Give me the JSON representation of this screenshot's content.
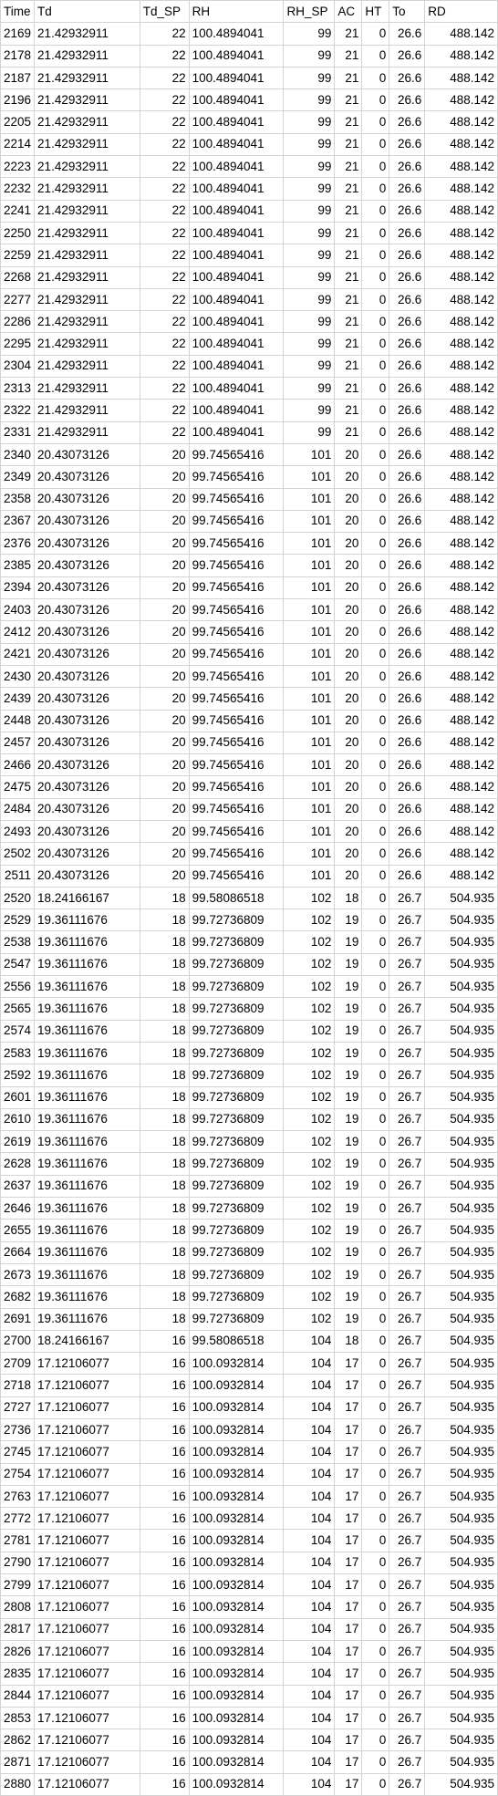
{
  "sheet": {
    "headers": [
      "Time",
      "Td",
      "Td_SP",
      "RH",
      "RH_SP",
      "AC",
      "HT",
      "To",
      "RD"
    ],
    "rows": [
      [
        "2169",
        "21.42932911",
        "22",
        "100.4894041",
        "99",
        "21",
        "0",
        "26.6",
        "488.142"
      ],
      [
        "2178",
        "21.42932911",
        "22",
        "100.4894041",
        "99",
        "21",
        "0",
        "26.6",
        "488.142"
      ],
      [
        "2187",
        "21.42932911",
        "22",
        "100.4894041",
        "99",
        "21",
        "0",
        "26.6",
        "488.142"
      ],
      [
        "2196",
        "21.42932911",
        "22",
        "100.4894041",
        "99",
        "21",
        "0",
        "26.6",
        "488.142"
      ],
      [
        "2205",
        "21.42932911",
        "22",
        "100.4894041",
        "99",
        "21",
        "0",
        "26.6",
        "488.142"
      ],
      [
        "2214",
        "21.42932911",
        "22",
        "100.4894041",
        "99",
        "21",
        "0",
        "26.6",
        "488.142"
      ],
      [
        "2223",
        "21.42932911",
        "22",
        "100.4894041",
        "99",
        "21",
        "0",
        "26.6",
        "488.142"
      ],
      [
        "2232",
        "21.42932911",
        "22",
        "100.4894041",
        "99",
        "21",
        "0",
        "26.6",
        "488.142"
      ],
      [
        "2241",
        "21.42932911",
        "22",
        "100.4894041",
        "99",
        "21",
        "0",
        "26.6",
        "488.142"
      ],
      [
        "2250",
        "21.42932911",
        "22",
        "100.4894041",
        "99",
        "21",
        "0",
        "26.6",
        "488.142"
      ],
      [
        "2259",
        "21.42932911",
        "22",
        "100.4894041",
        "99",
        "21",
        "0",
        "26.6",
        "488.142"
      ],
      [
        "2268",
        "21.42932911",
        "22",
        "100.4894041",
        "99",
        "21",
        "0",
        "26.6",
        "488.142"
      ],
      [
        "2277",
        "21.42932911",
        "22",
        "100.4894041",
        "99",
        "21",
        "0",
        "26.6",
        "488.142"
      ],
      [
        "2286",
        "21.42932911",
        "22",
        "100.4894041",
        "99",
        "21",
        "0",
        "26.6",
        "488.142"
      ],
      [
        "2295",
        "21.42932911",
        "22",
        "100.4894041",
        "99",
        "21",
        "0",
        "26.6",
        "488.142"
      ],
      [
        "2304",
        "21.42932911",
        "22",
        "100.4894041",
        "99",
        "21",
        "0",
        "26.6",
        "488.142"
      ],
      [
        "2313",
        "21.42932911",
        "22",
        "100.4894041",
        "99",
        "21",
        "0",
        "26.6",
        "488.142"
      ],
      [
        "2322",
        "21.42932911",
        "22",
        "100.4894041",
        "99",
        "21",
        "0",
        "26.6",
        "488.142"
      ],
      [
        "2331",
        "21.42932911",
        "22",
        "100.4894041",
        "99",
        "21",
        "0",
        "26.6",
        "488.142"
      ],
      [
        "2340",
        "20.43073126",
        "20",
        "99.74565416",
        "101",
        "20",
        "0",
        "26.6",
        "488.142"
      ],
      [
        "2349",
        "20.43073126",
        "20",
        "99.74565416",
        "101",
        "20",
        "0",
        "26.6",
        "488.142"
      ],
      [
        "2358",
        "20.43073126",
        "20",
        "99.74565416",
        "101",
        "20",
        "0",
        "26.6",
        "488.142"
      ],
      [
        "2367",
        "20.43073126",
        "20",
        "99.74565416",
        "101",
        "20",
        "0",
        "26.6",
        "488.142"
      ],
      [
        "2376",
        "20.43073126",
        "20",
        "99.74565416",
        "101",
        "20",
        "0",
        "26.6",
        "488.142"
      ],
      [
        "2385",
        "20.43073126",
        "20",
        "99.74565416",
        "101",
        "20",
        "0",
        "26.6",
        "488.142"
      ],
      [
        "2394",
        "20.43073126",
        "20",
        "99.74565416",
        "101",
        "20",
        "0",
        "26.6",
        "488.142"
      ],
      [
        "2403",
        "20.43073126",
        "20",
        "99.74565416",
        "101",
        "20",
        "0",
        "26.6",
        "488.142"
      ],
      [
        "2412",
        "20.43073126",
        "20",
        "99.74565416",
        "101",
        "20",
        "0",
        "26.6",
        "488.142"
      ],
      [
        "2421",
        "20.43073126",
        "20",
        "99.74565416",
        "101",
        "20",
        "0",
        "26.6",
        "488.142"
      ],
      [
        "2430",
        "20.43073126",
        "20",
        "99.74565416",
        "101",
        "20",
        "0",
        "26.6",
        "488.142"
      ],
      [
        "2439",
        "20.43073126",
        "20",
        "99.74565416",
        "101",
        "20",
        "0",
        "26.6",
        "488.142"
      ],
      [
        "2448",
        "20.43073126",
        "20",
        "99.74565416",
        "101",
        "20",
        "0",
        "26.6",
        "488.142"
      ],
      [
        "2457",
        "20.43073126",
        "20",
        "99.74565416",
        "101",
        "20",
        "0",
        "26.6",
        "488.142"
      ],
      [
        "2466",
        "20.43073126",
        "20",
        "99.74565416",
        "101",
        "20",
        "0",
        "26.6",
        "488.142"
      ],
      [
        "2475",
        "20.43073126",
        "20",
        "99.74565416",
        "101",
        "20",
        "0",
        "26.6",
        "488.142"
      ],
      [
        "2484",
        "20.43073126",
        "20",
        "99.74565416",
        "101",
        "20",
        "0",
        "26.6",
        "488.142"
      ],
      [
        "2493",
        "20.43073126",
        "20",
        "99.74565416",
        "101",
        "20",
        "0",
        "26.6",
        "488.142"
      ],
      [
        "2502",
        "20.43073126",
        "20",
        "99.74565416",
        "101",
        "20",
        "0",
        "26.6",
        "488.142"
      ],
      [
        "2511",
        "20.43073126",
        "20",
        "99.74565416",
        "101",
        "20",
        "0",
        "26.6",
        "488.142"
      ],
      [
        "2520",
        "18.24166167",
        "18",
        "99.58086518",
        "102",
        "18",
        "0",
        "26.7",
        "504.935"
      ],
      [
        "2529",
        "19.36111676",
        "18",
        "99.72736809",
        "102",
        "19",
        "0",
        "26.7",
        "504.935"
      ],
      [
        "2538",
        "19.36111676",
        "18",
        "99.72736809",
        "102",
        "19",
        "0",
        "26.7",
        "504.935"
      ],
      [
        "2547",
        "19.36111676",
        "18",
        "99.72736809",
        "102",
        "19",
        "0",
        "26.7",
        "504.935"
      ],
      [
        "2556",
        "19.36111676",
        "18",
        "99.72736809",
        "102",
        "19",
        "0",
        "26.7",
        "504.935"
      ],
      [
        "2565",
        "19.36111676",
        "18",
        "99.72736809",
        "102",
        "19",
        "0",
        "26.7",
        "504.935"
      ],
      [
        "2574",
        "19.36111676",
        "18",
        "99.72736809",
        "102",
        "19",
        "0",
        "26.7",
        "504.935"
      ],
      [
        "2583",
        "19.36111676",
        "18",
        "99.72736809",
        "102",
        "19",
        "0",
        "26.7",
        "504.935"
      ],
      [
        "2592",
        "19.36111676",
        "18",
        "99.72736809",
        "102",
        "19",
        "0",
        "26.7",
        "504.935"
      ],
      [
        "2601",
        "19.36111676",
        "18",
        "99.72736809",
        "102",
        "19",
        "0",
        "26.7",
        "504.935"
      ],
      [
        "2610",
        "19.36111676",
        "18",
        "99.72736809",
        "102",
        "19",
        "0",
        "26.7",
        "504.935"
      ],
      [
        "2619",
        "19.36111676",
        "18",
        "99.72736809",
        "102",
        "19",
        "0",
        "26.7",
        "504.935"
      ],
      [
        "2628",
        "19.36111676",
        "18",
        "99.72736809",
        "102",
        "19",
        "0",
        "26.7",
        "504.935"
      ],
      [
        "2637",
        "19.36111676",
        "18",
        "99.72736809",
        "102",
        "19",
        "0",
        "26.7",
        "504.935"
      ],
      [
        "2646",
        "19.36111676",
        "18",
        "99.72736809",
        "102",
        "19",
        "0",
        "26.7",
        "504.935"
      ],
      [
        "2655",
        "19.36111676",
        "18",
        "99.72736809",
        "102",
        "19",
        "0",
        "26.7",
        "504.935"
      ],
      [
        "2664",
        "19.36111676",
        "18",
        "99.72736809",
        "102",
        "19",
        "0",
        "26.7",
        "504.935"
      ],
      [
        "2673",
        "19.36111676",
        "18",
        "99.72736809",
        "102",
        "19",
        "0",
        "26.7",
        "504.935"
      ],
      [
        "2682",
        "19.36111676",
        "18",
        "99.72736809",
        "102",
        "19",
        "0",
        "26.7",
        "504.935"
      ],
      [
        "2691",
        "19.36111676",
        "18",
        "99.72736809",
        "102",
        "19",
        "0",
        "26.7",
        "504.935"
      ],
      [
        "2700",
        "18.24166167",
        "16",
        "99.58086518",
        "104",
        "18",
        "0",
        "26.7",
        "504.935"
      ],
      [
        "2709",
        "17.12106077",
        "16",
        "100.0932814",
        "104",
        "17",
        "0",
        "26.7",
        "504.935"
      ],
      [
        "2718",
        "17.12106077",
        "16",
        "100.0932814",
        "104",
        "17",
        "0",
        "26.7",
        "504.935"
      ],
      [
        "2727",
        "17.12106077",
        "16",
        "100.0932814",
        "104",
        "17",
        "0",
        "26.7",
        "504.935"
      ],
      [
        "2736",
        "17.12106077",
        "16",
        "100.0932814",
        "104",
        "17",
        "0",
        "26.7",
        "504.935"
      ],
      [
        "2745",
        "17.12106077",
        "16",
        "100.0932814",
        "104",
        "17",
        "0",
        "26.7",
        "504.935"
      ],
      [
        "2754",
        "17.12106077",
        "16",
        "100.0932814",
        "104",
        "17",
        "0",
        "26.7",
        "504.935"
      ],
      [
        "2763",
        "17.12106077",
        "16",
        "100.0932814",
        "104",
        "17",
        "0",
        "26.7",
        "504.935"
      ],
      [
        "2772",
        "17.12106077",
        "16",
        "100.0932814",
        "104",
        "17",
        "0",
        "26.7",
        "504.935"
      ],
      [
        "2781",
        "17.12106077",
        "16",
        "100.0932814",
        "104",
        "17",
        "0",
        "26.7",
        "504.935"
      ],
      [
        "2790",
        "17.12106077",
        "16",
        "100.0932814",
        "104",
        "17",
        "0",
        "26.7",
        "504.935"
      ],
      [
        "2799",
        "17.12106077",
        "16",
        "100.0932814",
        "104",
        "17",
        "0",
        "26.7",
        "504.935"
      ],
      [
        "2808",
        "17.12106077",
        "16",
        "100.0932814",
        "104",
        "17",
        "0",
        "26.7",
        "504.935"
      ],
      [
        "2817",
        "17.12106077",
        "16",
        "100.0932814",
        "104",
        "17",
        "0",
        "26.7",
        "504.935"
      ],
      [
        "2826",
        "17.12106077",
        "16",
        "100.0932814",
        "104",
        "17",
        "0",
        "26.7",
        "504.935"
      ],
      [
        "2835",
        "17.12106077",
        "16",
        "100.0932814",
        "104",
        "17",
        "0",
        "26.7",
        "504.935"
      ],
      [
        "2844",
        "17.12106077",
        "16",
        "100.0932814",
        "104",
        "17",
        "0",
        "26.7",
        "504.935"
      ],
      [
        "2853",
        "17.12106077",
        "16",
        "100.0932814",
        "104",
        "17",
        "0",
        "26.7",
        "504.935"
      ],
      [
        "2862",
        "17.12106077",
        "16",
        "100.0932814",
        "104",
        "17",
        "0",
        "26.7",
        "504.935"
      ],
      [
        "2871",
        "17.12106077",
        "16",
        "100.0932814",
        "104",
        "17",
        "0",
        "26.7",
        "504.935"
      ],
      [
        "2880",
        "17.12106077",
        "16",
        "100.0932814",
        "104",
        "17",
        "0",
        "26.7",
        "504.935"
      ]
    ]
  }
}
